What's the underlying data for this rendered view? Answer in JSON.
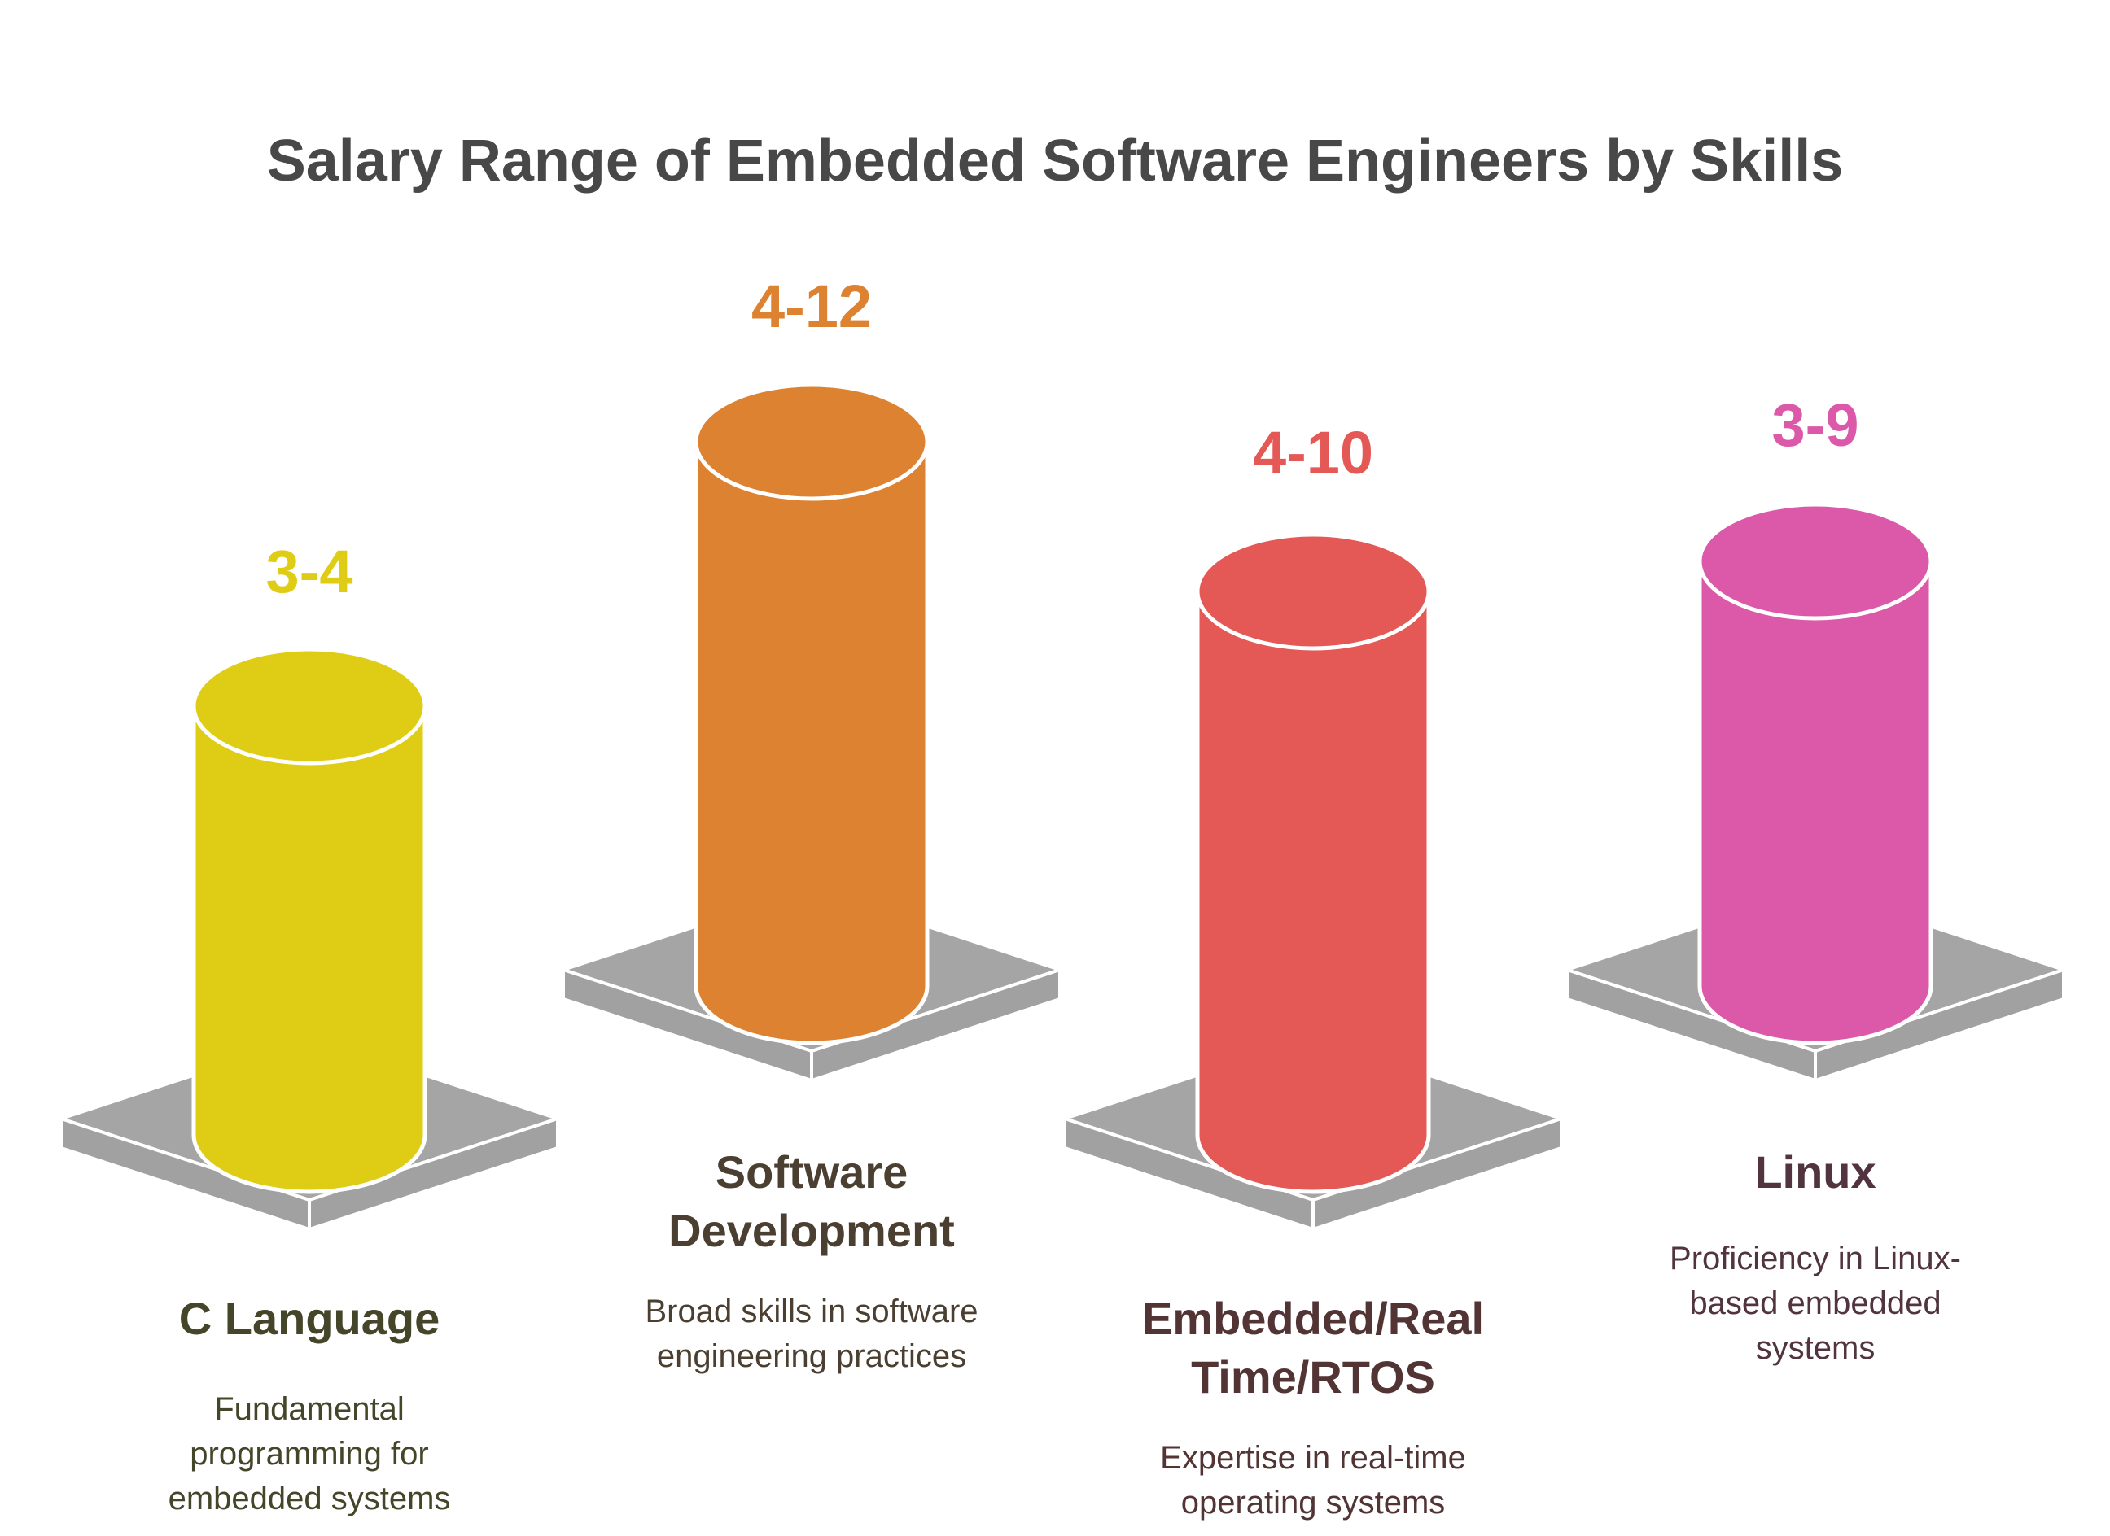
{
  "chart_data": {
    "type": "bar",
    "title": "Salary Range of Embedded Software Engineers by Skills",
    "categories": [
      "C Language",
      "Software Development",
      "Embedded/Real Time/RTOS",
      "Linux"
    ],
    "values": [
      "3-4",
      "4-12",
      "4-10",
      "3-9"
    ],
    "ranges": [
      [
        3,
        4
      ],
      [
        4,
        12
      ],
      [
        4,
        10
      ],
      [
        3,
        9
      ]
    ],
    "items": [
      {
        "label": "3-4",
        "name_lines": [
          "C Language"
        ],
        "desc_lines": [
          "Fundamental",
          "programming for",
          "embedded systems"
        ],
        "color": "#dfcc15",
        "text_color": "#45452a"
      },
      {
        "label": "4-12",
        "name_lines": [
          "Software",
          "Development"
        ],
        "desc_lines": [
          "Broad skills in software",
          "engineering practices"
        ],
        "color": "#dd8231",
        "text_color": "#4b3f31"
      },
      {
        "label": "4-10",
        "name_lines": [
          "Embedded/Real",
          "Time/RTOS"
        ],
        "desc_lines": [
          "Expertise in real-time",
          "operating systems"
        ],
        "color": "#e45855",
        "text_color": "#523435"
      },
      {
        "label": "3-9",
        "name_lines": [
          "Linux"
        ],
        "desc_lines": [
          "Proficiency in Linux-",
          "based embedded",
          "systems"
        ],
        "color": "#dc58a8",
        "text_color": "#51343f"
      }
    ],
    "colors": {
      "platform_top": "#a5a5a5",
      "platform_side": "#a1a1a1",
      "outline": "#ffffff",
      "title": "#484848"
    },
    "grid": false,
    "legend": "none"
  }
}
